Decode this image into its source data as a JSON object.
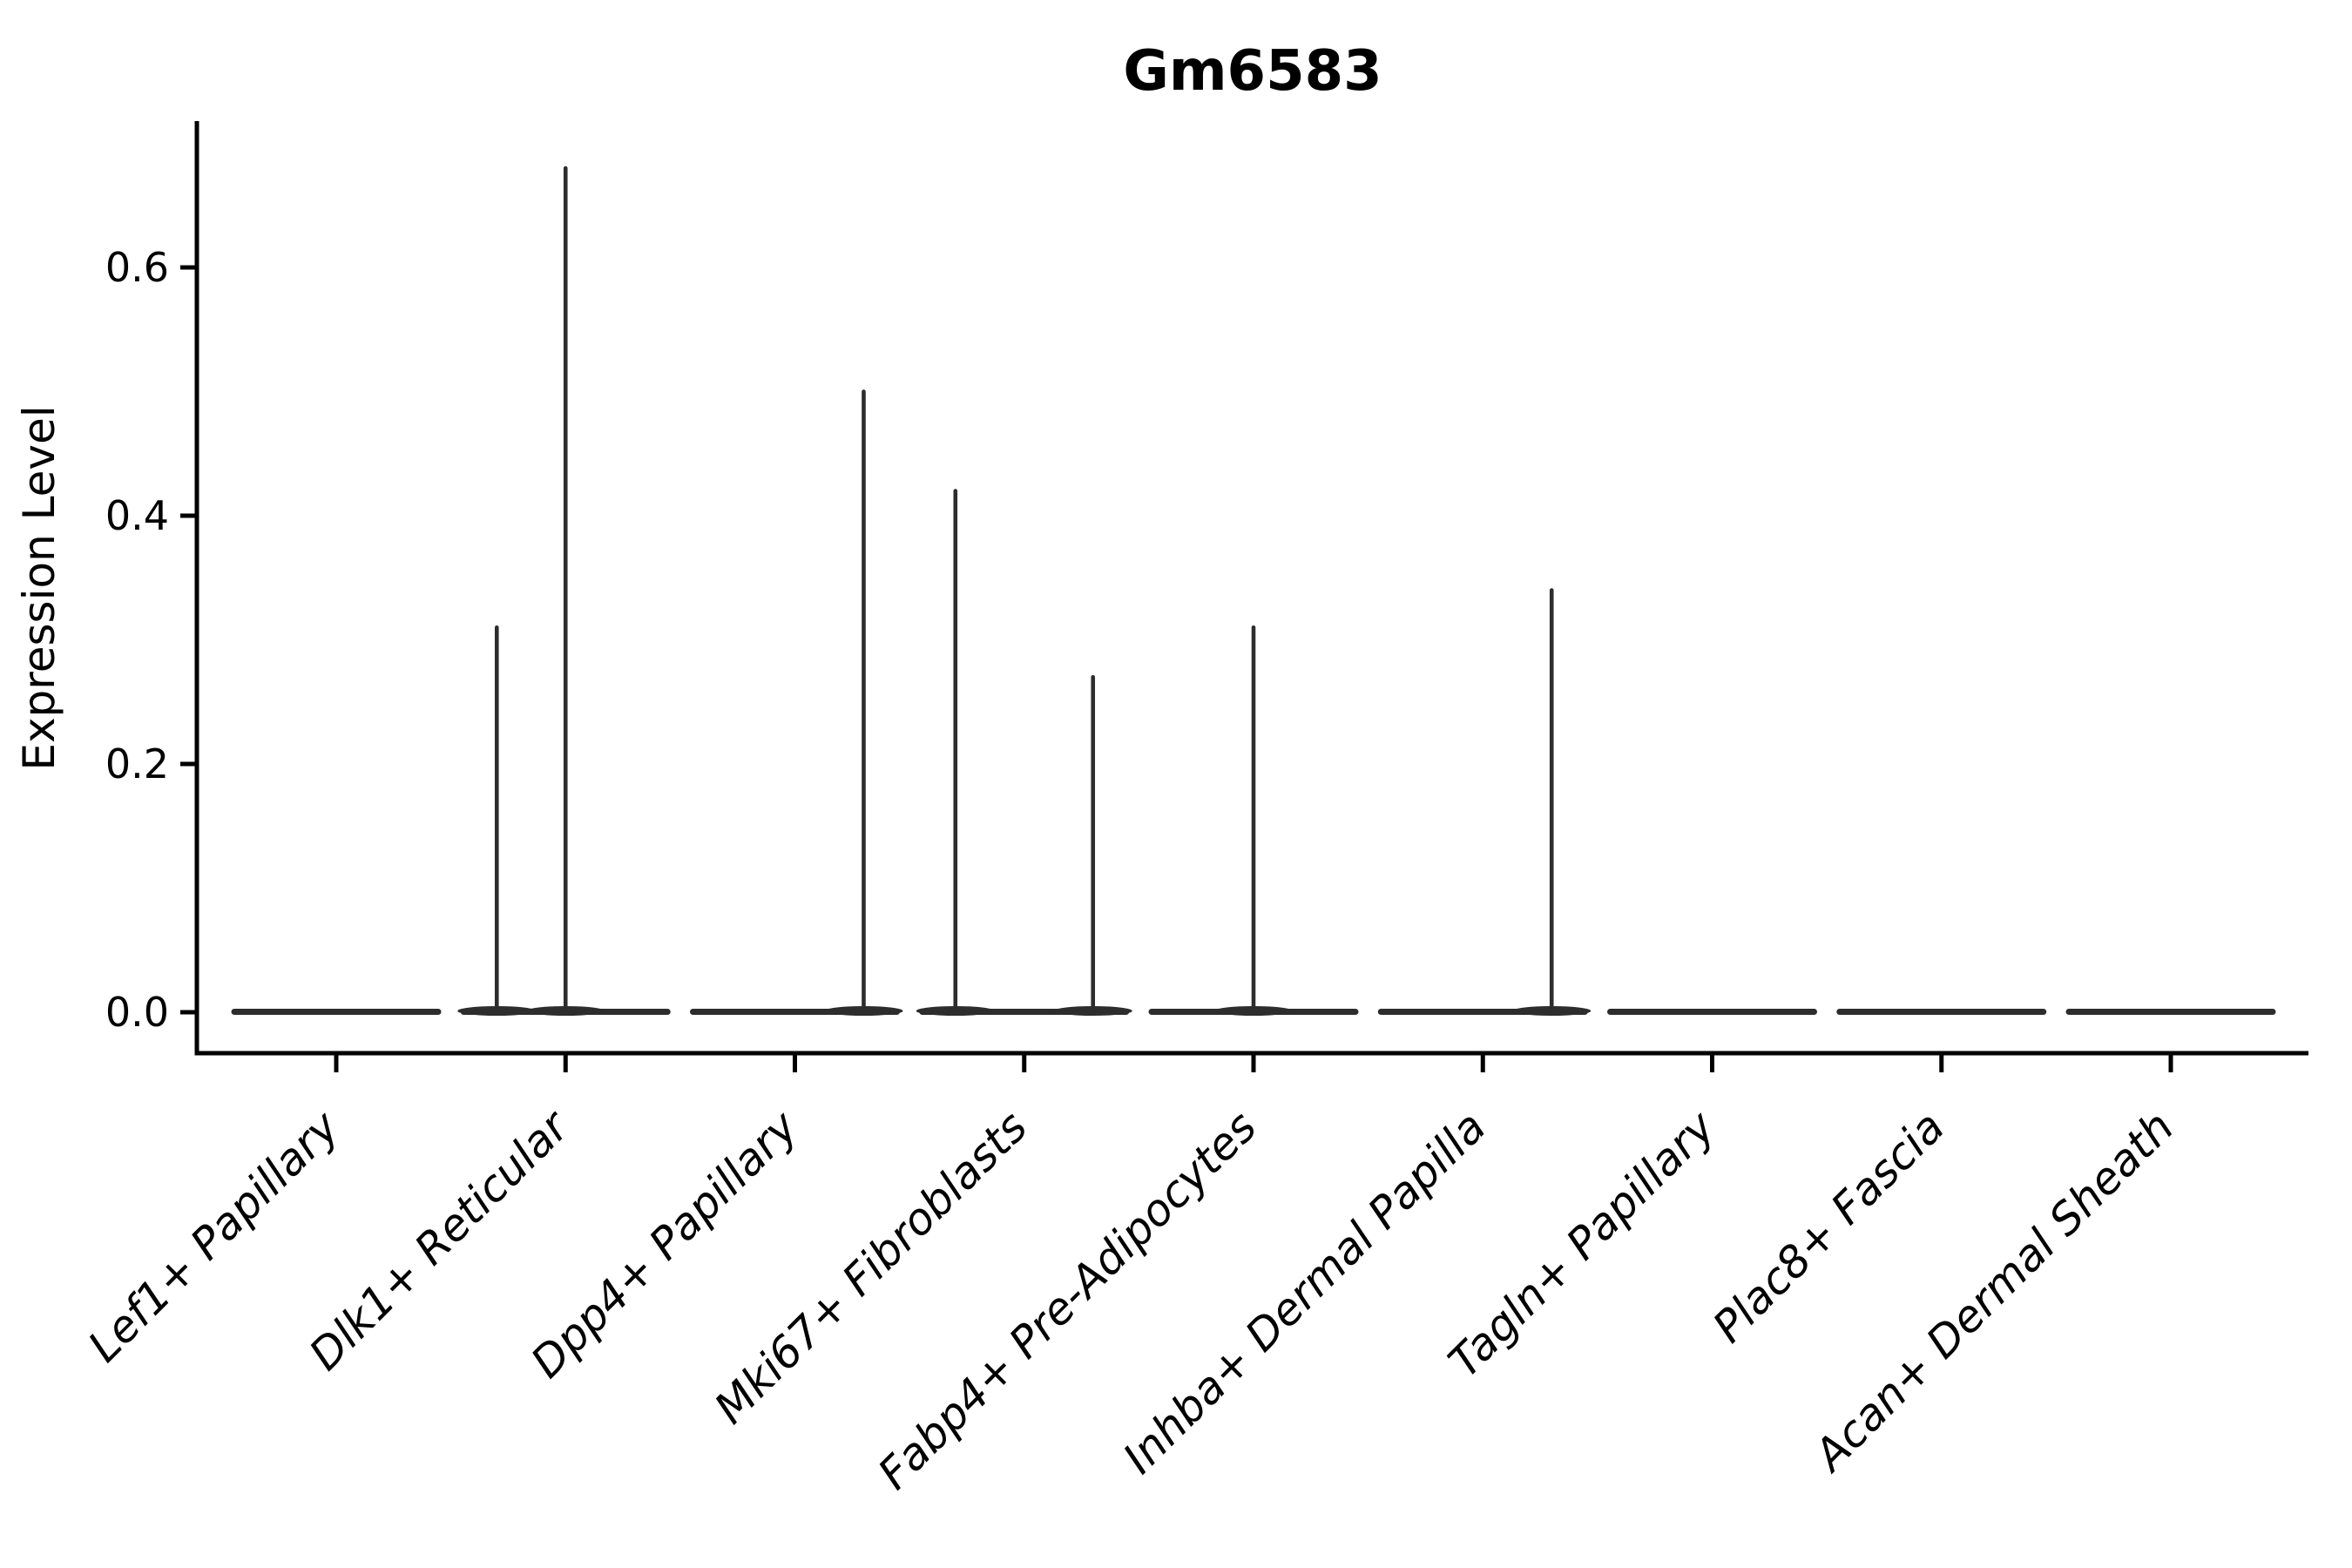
{
  "figure": {
    "title": "Gm6583",
    "ylabel": "Expression Level"
  },
  "chart_data": {
    "type": "violin",
    "title": "Gm6583",
    "xlabel": "",
    "ylabel": "Expression Level",
    "categories": [
      "Lef1+ Papillary",
      "Dlk1+ Reticular",
      "Dpp4+ Papillary",
      "Mki67+ Fibroblasts",
      "Fabp4+ Pre-Adipocytes",
      "Inhba+ Dermal Papilla",
      "Tagln+ Papillary",
      "Plac8+ Fascia",
      "Acan+ Dermal Sheath"
    ],
    "yticks": [
      {
        "value": 0.0,
        "label": "0.0"
      },
      {
        "value": 0.2,
        "label": "0.2"
      },
      {
        "value": 0.4,
        "label": "0.4"
      },
      {
        "value": 0.6,
        "label": "0.6"
      }
    ],
    "ylim": [
      -0.033,
      0.717
    ],
    "grid": false,
    "legend": null,
    "description": "Violin plot of Gm6583 expression; each cluster shows a flat density pancake at 0 with thin spikes rising to the maximum expressed values.",
    "violins": [
      {
        "category": "Lef1+ Papillary",
        "baseline": 0.0,
        "spikes": []
      },
      {
        "category": "Dlk1+ Reticular",
        "baseline": 0.0,
        "spikes": [
          {
            "offset": -0.3,
            "max": 0.31
          },
          {
            "offset": 0.0,
            "max": 0.68
          }
        ]
      },
      {
        "category": "Dpp4+ Papillary",
        "baseline": 0.0,
        "spikes": [
          {
            "offset": 0.3,
            "max": 0.5
          }
        ]
      },
      {
        "category": "Mki67+ Fibroblasts",
        "baseline": 0.0,
        "spikes": [
          {
            "offset": -0.3,
            "max": 0.42
          },
          {
            "offset": 0.3,
            "max": 0.27
          }
        ]
      },
      {
        "category": "Fabp4+ Pre-Adipocytes",
        "baseline": 0.0,
        "spikes": [
          {
            "offset": 0.0,
            "max": 0.31
          }
        ]
      },
      {
        "category": "Inhba+ Dermal Papilla",
        "baseline": 0.0,
        "spikes": [
          {
            "offset": 0.3,
            "max": 0.34
          }
        ]
      },
      {
        "category": "Tagln+ Papillary",
        "baseline": 0.0,
        "spikes": []
      },
      {
        "category": "Plac8+ Fascia",
        "baseline": 0.0,
        "spikes": []
      },
      {
        "category": "Acan+ Dermal Sheath",
        "baseline": 0.0,
        "spikes": []
      }
    ],
    "colors": {
      "violin": "#2d2d2d",
      "axis": "#000000",
      "text": "#000000",
      "background": "#ffffff"
    }
  }
}
